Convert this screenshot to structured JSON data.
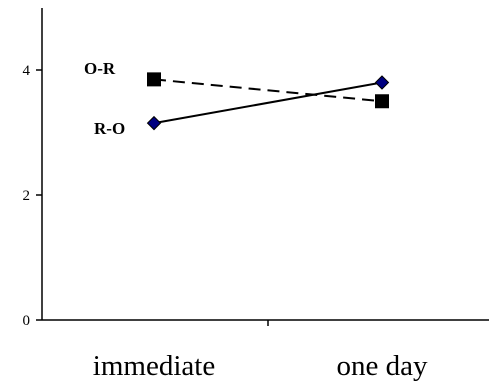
{
  "chart_data": {
    "type": "line",
    "categories": [
      "immediate",
      "one day"
    ],
    "y_ticks": [
      "0",
      "2",
      "4"
    ],
    "ylim": [
      0,
      5
    ],
    "grid": false,
    "legend": "none",
    "series": [
      {
        "name": "O-R",
        "values": [
          3.85,
          3.5
        ],
        "line_style": "dashed",
        "marker": "square",
        "color": "#000000",
        "marker_color": "#000000"
      },
      {
        "name": "R-O",
        "values": [
          3.15,
          3.8
        ],
        "line_style": "solid",
        "marker": "diamond",
        "color": "#000000",
        "marker_color": "#000080"
      }
    ]
  }
}
